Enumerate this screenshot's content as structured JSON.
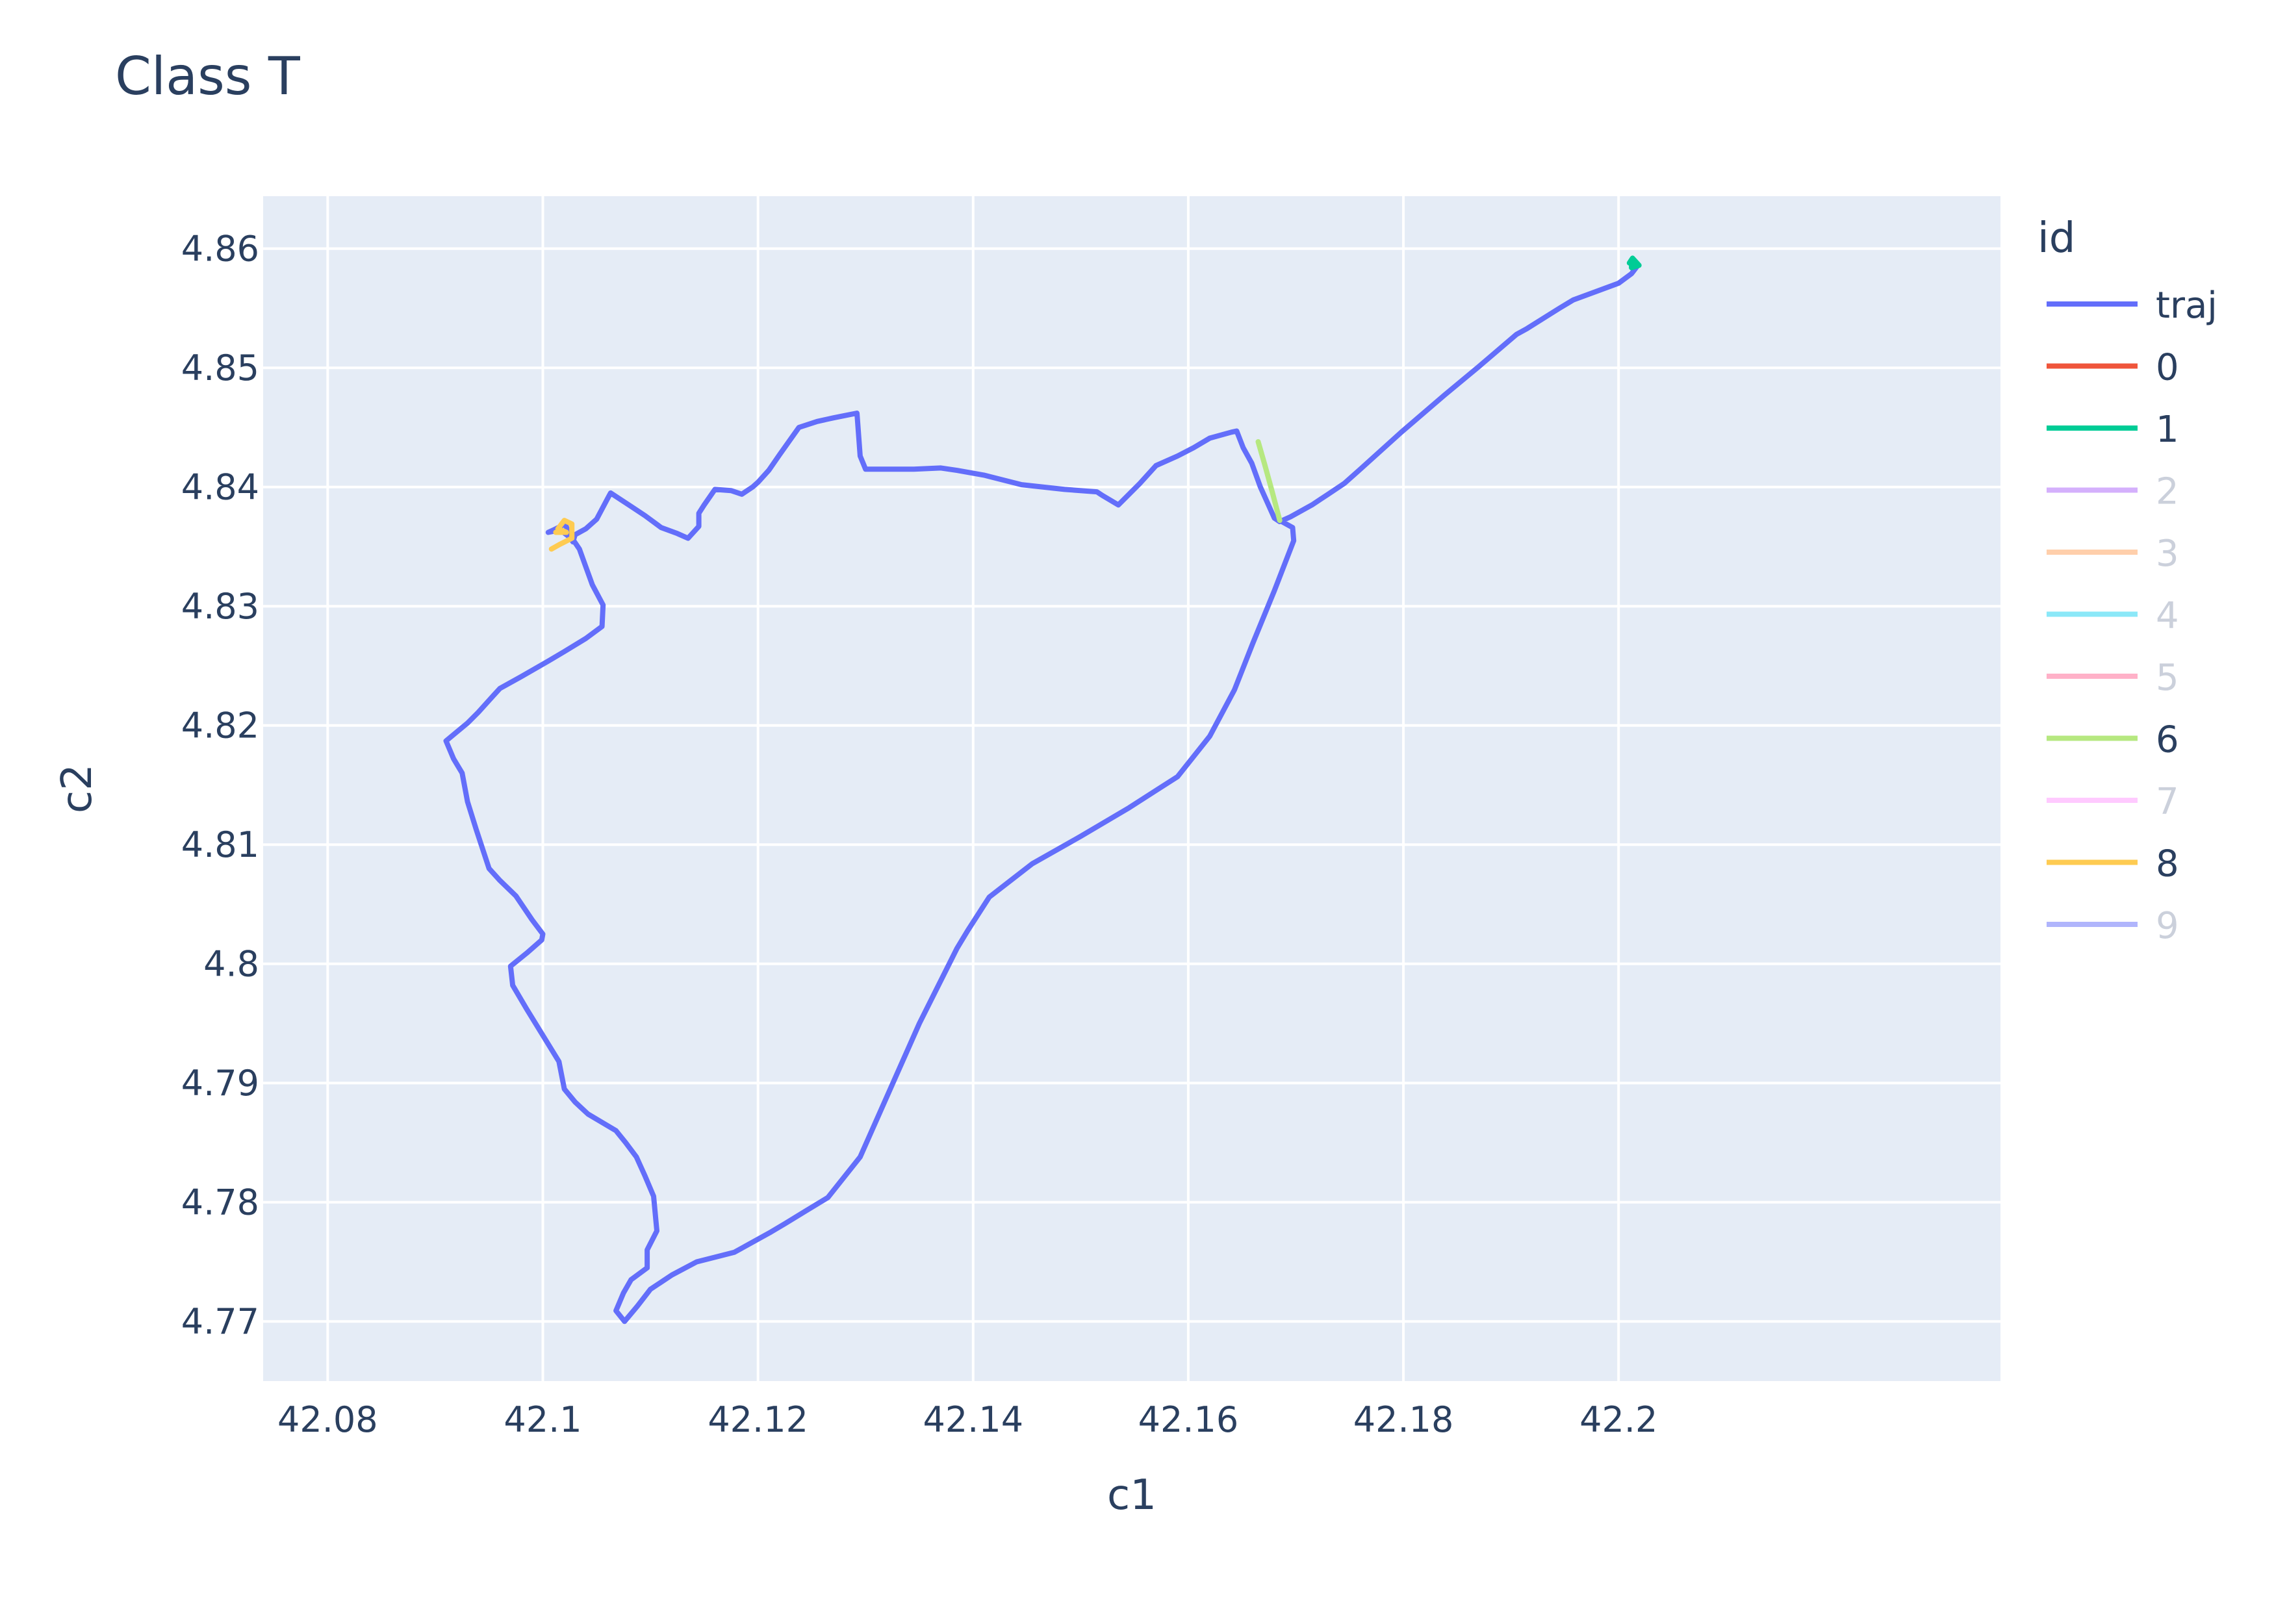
{
  "chart_data": {
    "type": "line",
    "title": "Class T",
    "xlabel": "c1",
    "ylabel": "c2",
    "xlim": [
      42.074,
      42.2355
    ],
    "ylim": [
      4.765,
      4.8644
    ],
    "xticks": [
      "42.08",
      "42.1",
      "42.12",
      "42.14",
      "42.16",
      "42.18",
      "42.2"
    ],
    "yticks": [
      "4.77",
      "4.78",
      "4.79",
      "4.8",
      "4.81",
      "4.82",
      "4.83",
      "4.84",
      "4.85",
      "4.86"
    ],
    "grid": true,
    "legend_title": "id",
    "legend_position": "right",
    "series": [
      {
        "name": "traj",
        "color": "#636efa",
        "visible": true,
        "points": [
          [
            42.2018,
            4.8586
          ],
          [
            42.2012,
            4.8579
          ],
          [
            42.2,
            4.8571
          ],
          [
            42.1958,
            4.8557
          ],
          [
            42.1945,
            4.855
          ],
          [
            42.1915,
            4.8533
          ],
          [
            42.1905,
            4.8528
          ],
          [
            42.187,
            4.8501
          ],
          [
            42.1838,
            4.8477
          ],
          [
            42.1798,
            4.8446
          ],
          [
            42.176,
            4.8415
          ],
          [
            42.1745,
            4.8403
          ],
          [
            42.173,
            4.8394
          ],
          [
            42.1715,
            4.8385
          ],
          [
            42.1695,
            4.8375
          ],
          [
            42.1685,
            4.8371
          ],
          [
            42.168,
            4.8374
          ],
          [
            42.1667,
            4.84
          ],
          [
            42.1659,
            4.842
          ],
          [
            42.1651,
            4.8433
          ],
          [
            42.1645,
            4.8447
          ],
          [
            42.164,
            4.8446
          ],
          [
            42.162,
            4.8441
          ],
          [
            42.1605,
            4.8433
          ],
          [
            42.159,
            4.8426
          ],
          [
            42.157,
            4.8418
          ],
          [
            42.1555,
            4.8403
          ],
          [
            42.1535,
            4.8385
          ],
          [
            42.152,
            4.8393
          ],
          [
            42.1515,
            4.8396
          ],
          [
            42.1485,
            4.8398
          ],
          [
            42.1445,
            4.8402
          ],
          [
            42.141,
            4.841
          ],
          [
            42.1385,
            4.8414
          ],
          [
            42.137,
            4.8416
          ],
          [
            42.1345,
            4.8415
          ],
          [
            42.13,
            4.8415
          ],
          [
            42.1295,
            4.8426
          ],
          [
            42.1292,
            4.8462
          ],
          [
            42.127,
            4.8458
          ],
          [
            42.1255,
            4.8455
          ],
          [
            42.1238,
            4.845
          ],
          [
            42.122,
            4.8427
          ],
          [
            42.121,
            4.8414
          ],
          [
            42.12,
            4.8404
          ],
          [
            42.1195,
            4.84
          ],
          [
            42.1185,
            4.8394
          ],
          [
            42.1175,
            4.8397
          ],
          [
            42.116,
            4.8398
          ],
          [
            42.115,
            4.8385
          ],
          [
            42.1145,
            4.8378
          ],
          [
            42.1145,
            4.8367
          ],
          [
            42.1135,
            4.8357
          ],
          [
            42.1125,
            4.8361
          ],
          [
            42.111,
            4.8366
          ],
          [
            42.1095,
            4.8376
          ],
          [
            42.108,
            4.8385
          ],
          [
            42.1063,
            4.8395
          ],
          [
            42.106,
            4.839
          ],
          [
            42.105,
            4.8373
          ],
          [
            42.104,
            4.8365
          ],
          [
            42.103,
            4.836
          ],
          [
            42.1028,
            4.8354
          ],
          [
            42.1025,
            4.8358
          ],
          [
            42.1021,
            4.8369
          ],
          [
            42.101,
            4.8364
          ],
          [
            42.1005,
            4.8362
          ],
          [
            42.1016,
            4.8364
          ],
          [
            42.1028,
            4.8356
          ],
          [
            42.1034,
            4.8348
          ],
          [
            42.104,
            4.8333
          ],
          [
            42.1046,
            4.8318
          ],
          [
            42.1056,
            4.8301
          ],
          [
            42.1055,
            4.8283
          ],
          [
            42.104,
            4.8273
          ],
          [
            42.102,
            4.8262
          ],
          [
            42.1005,
            4.8254
          ],
          [
            42.098,
            4.8241
          ],
          [
            42.096,
            4.8231
          ],
          [
            42.0955,
            4.8226
          ],
          [
            42.094,
            4.8211
          ],
          [
            42.093,
            4.8202
          ],
          [
            42.0918,
            4.8193
          ],
          [
            42.091,
            4.8187
          ],
          [
            42.0917,
            4.8172
          ],
          [
            42.0925,
            4.816
          ],
          [
            42.093,
            4.8136
          ],
          [
            42.0938,
            4.8113
          ],
          [
            42.095,
            4.808
          ],
          [
            42.096,
            4.807
          ],
          [
            42.0975,
            4.8057
          ],
          [
            42.099,
            4.8037
          ],
          [
            42.1,
            4.8025
          ],
          [
            42.0999,
            4.802
          ],
          [
            42.0985,
            4.8009
          ],
          [
            42.097,
            4.7998
          ],
          [
            42.0972,
            4.7982
          ],
          [
            42.0985,
            4.7962
          ],
          [
            42.1,
            4.794
          ],
          [
            42.1015,
            4.7918
          ],
          [
            42.102,
            4.7895
          ],
          [
            42.103,
            4.7884
          ],
          [
            42.1042,
            4.7874
          ],
          [
            42.1055,
            4.7867
          ],
          [
            42.1068,
            4.786
          ],
          [
            42.1077,
            4.785
          ],
          [
            42.1087,
            4.7838
          ],
          [
            42.1095,
            4.7822
          ],
          [
            42.1103,
            4.7805
          ],
          [
            42.1106,
            4.7776
          ],
          [
            42.1097,
            4.776
          ],
          [
            42.1097,
            4.7745
          ],
          [
            42.1082,
            4.7735
          ],
          [
            42.1075,
            4.7724
          ],
          [
            42.1068,
            4.7709
          ],
          [
            42.1076,
            4.77
          ],
          [
            42.1088,
            4.7713
          ],
          [
            42.11,
            4.7727
          ],
          [
            42.112,
            4.7739
          ],
          [
            42.1143,
            4.775
          ],
          [
            42.1165,
            4.7755
          ],
          [
            42.1178,
            4.7758
          ],
          [
            42.1212,
            4.7775
          ],
          [
            42.1225,
            4.7782
          ],
          [
            42.1245,
            4.7793
          ],
          [
            42.1265,
            4.7804
          ],
          [
            42.1295,
            4.7838
          ],
          [
            42.1322,
            4.7893
          ],
          [
            42.135,
            4.795
          ],
          [
            42.1385,
            4.8013
          ],
          [
            42.1395,
            4.8028
          ],
          [
            42.1415,
            4.8056
          ],
          [
            42.1435,
            4.807
          ],
          [
            42.1455,
            4.8084
          ],
          [
            42.15,
            4.8107
          ],
          [
            42.1545,
            4.8131
          ],
          [
            42.159,
            4.8157
          ],
          [
            42.162,
            4.8191
          ],
          [
            42.1643,
            4.823
          ],
          [
            42.166,
            4.8269
          ],
          [
            42.168,
            4.8313
          ],
          [
            42.1698,
            4.8355
          ],
          [
            42.1697,
            4.8366
          ],
          [
            42.1685,
            4.8372
          ]
        ]
      },
      {
        "name": "0",
        "color": "#ef553b",
        "visible": true,
        "points": [
          [
            42.2014,
            4.8587
          ],
          [
            42.2017,
            4.8586
          ]
        ]
      },
      {
        "name": "1",
        "color": "#00cc96",
        "visible": true,
        "points": [
          [
            42.201,
            4.8588
          ],
          [
            42.2013,
            4.8592
          ],
          [
            42.2019,
            4.8586
          ],
          [
            42.2012,
            4.8584
          ],
          [
            42.2012,
            4.8588
          ]
        ]
      },
      {
        "name": "2",
        "color": "#ab63fa",
        "visible": false,
        "points": []
      },
      {
        "name": "3",
        "color": "#ffa15a",
        "visible": false,
        "points": []
      },
      {
        "name": "4",
        "color": "#19d3f3",
        "visible": false,
        "points": []
      },
      {
        "name": "5",
        "color": "#ff6692",
        "visible": false,
        "points": []
      },
      {
        "name": "6",
        "color": "#b6e880",
        "visible": true,
        "points": [
          [
            42.1665,
            4.8438
          ],
          [
            42.1671,
            4.8419
          ],
          [
            42.1678,
            4.8396
          ],
          [
            42.1685,
            4.8372
          ]
        ]
      },
      {
        "name": "7",
        "color": "#ff97ff",
        "visible": false,
        "points": []
      },
      {
        "name": "8",
        "color": "#fecb52",
        "visible": true,
        "points": [
          [
            42.1008,
            4.8348
          ],
          [
            42.1016,
            4.8352
          ],
          [
            42.1027,
            4.8357
          ],
          [
            42.1027,
            4.8369
          ],
          [
            42.102,
            4.8372
          ],
          [
            42.1014,
            4.8365
          ],
          [
            42.1022,
            4.8362
          ],
          [
            42.1012,
            4.8362
          ]
        ]
      },
      {
        "name": "9",
        "color": "#636efa",
        "visible": false,
        "points": []
      }
    ]
  }
}
